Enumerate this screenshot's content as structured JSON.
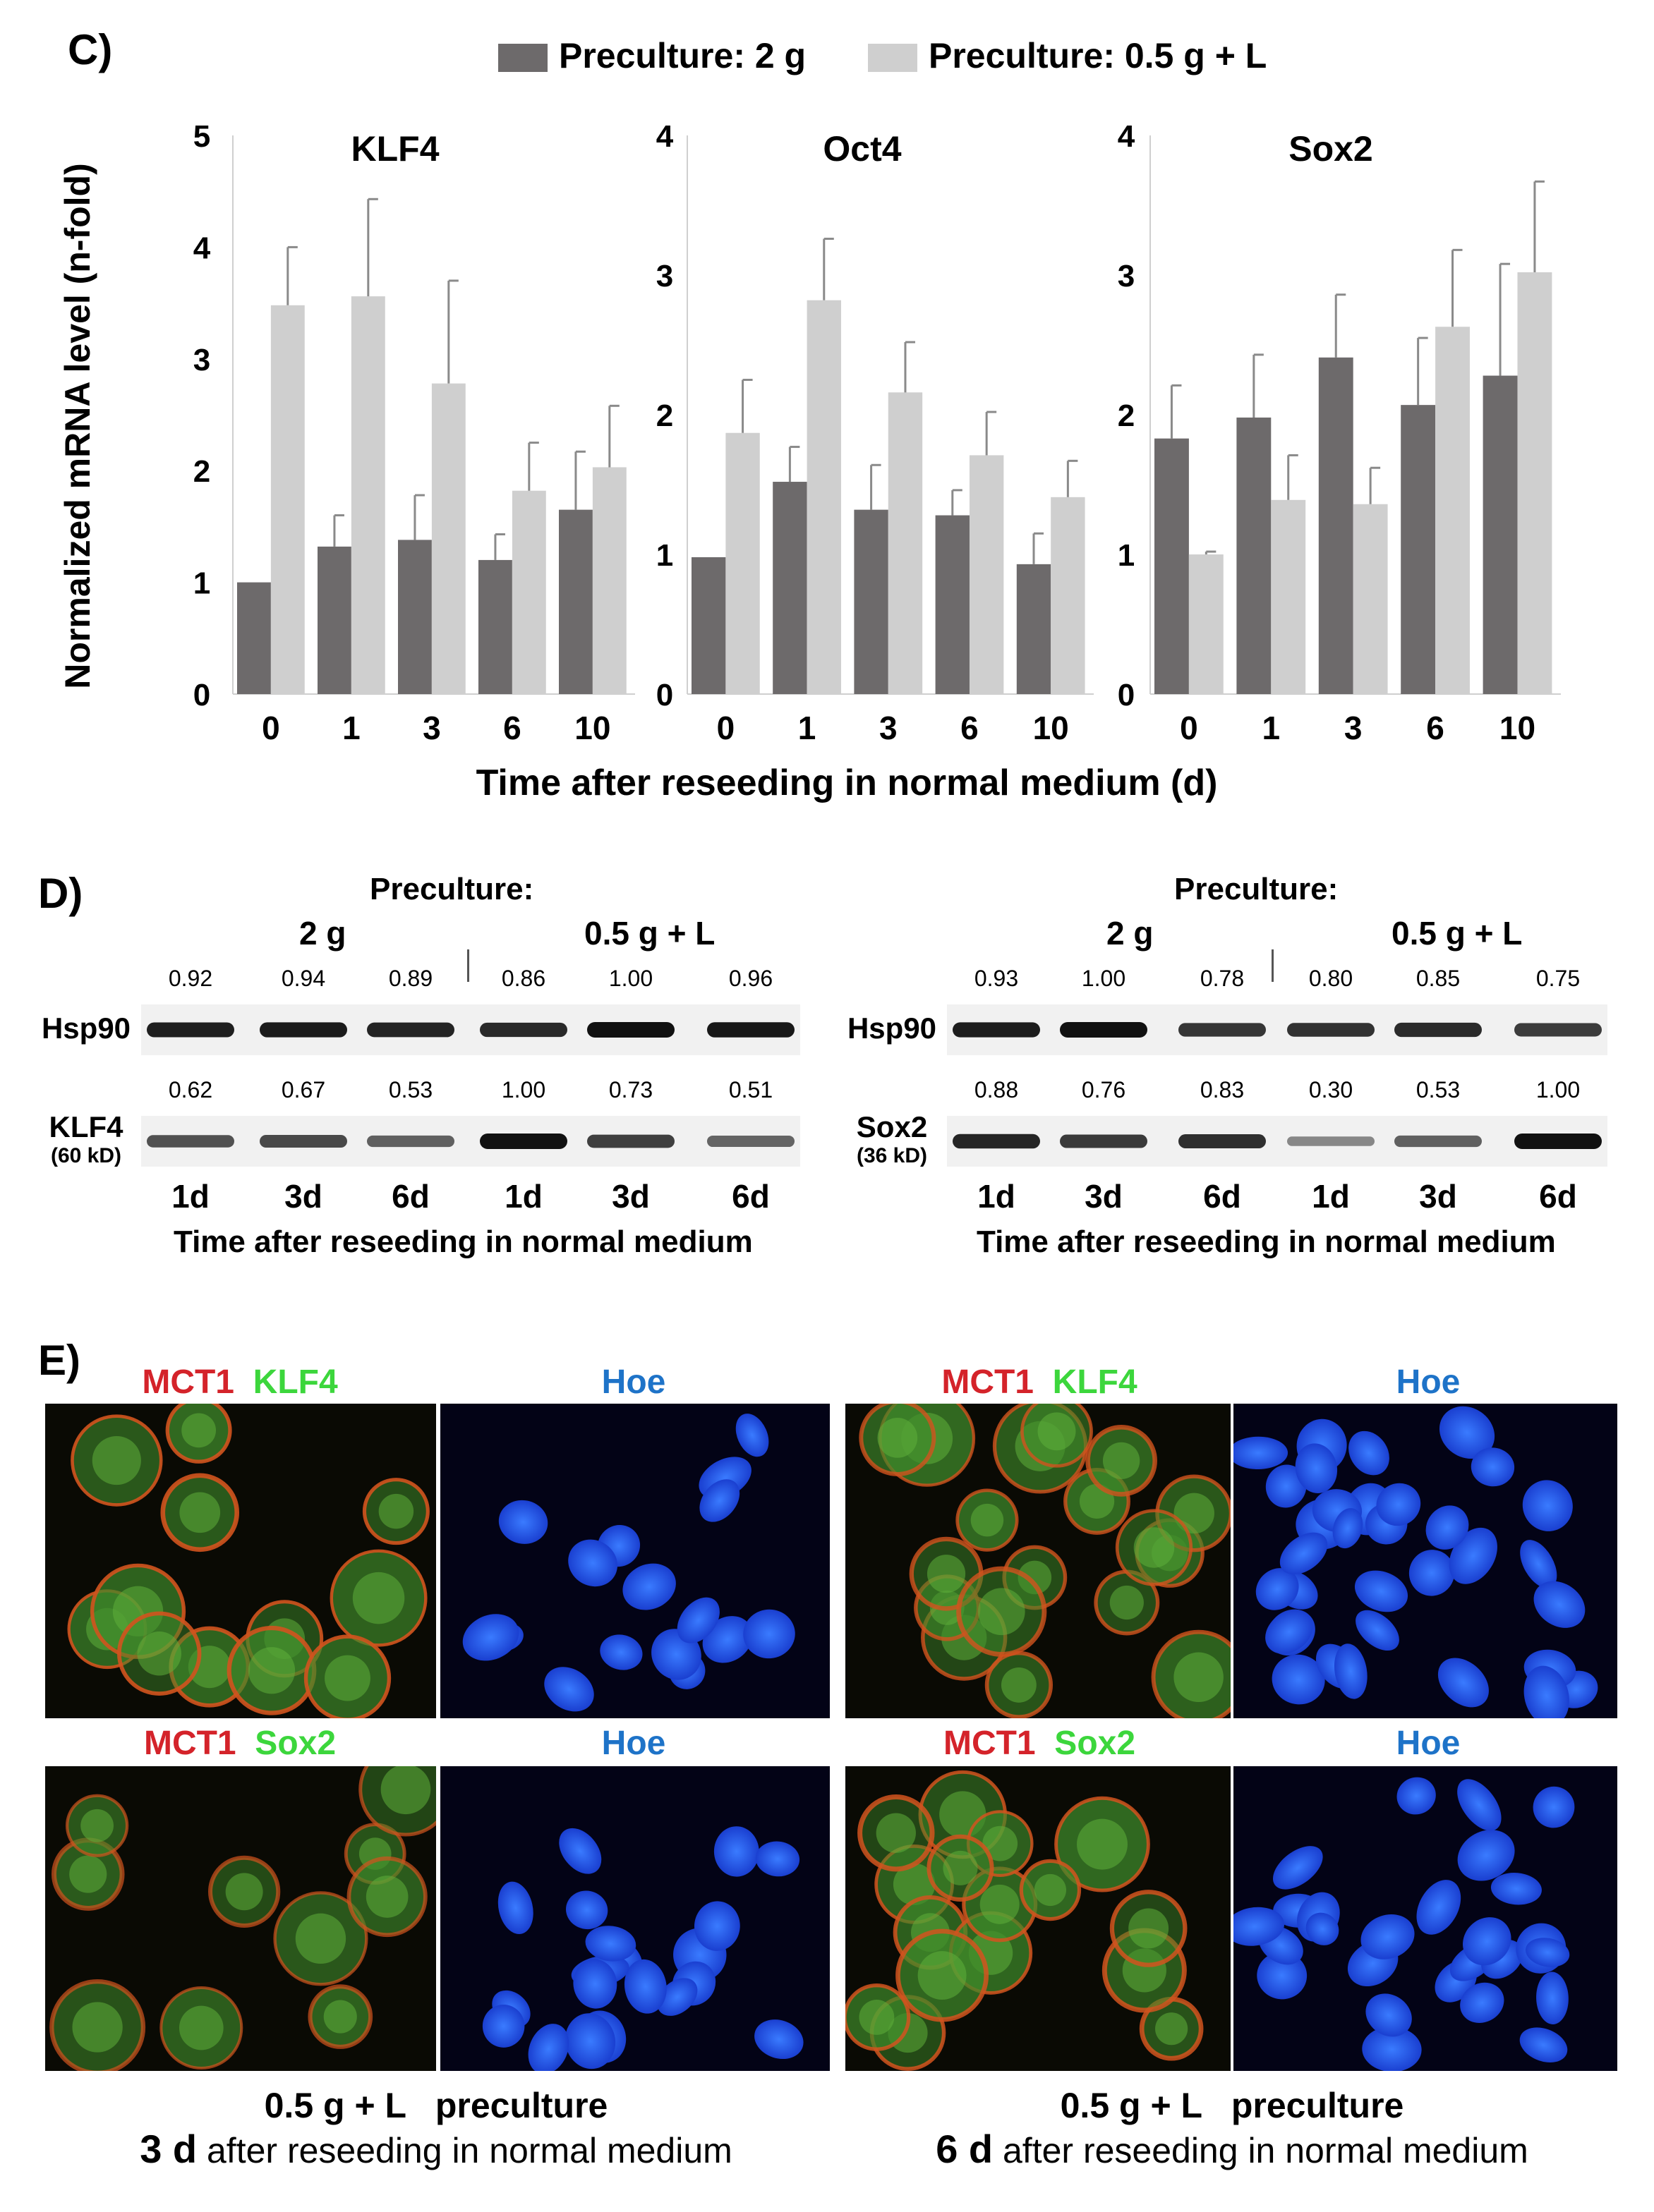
{
  "panel_c": {
    "label": "C)",
    "legend": [
      {
        "name": "Preculture: 2 g",
        "color": "#6d6a6b"
      },
      {
        "name": "Preculture: 0.5 g + L",
        "color": "#cfcfcf"
      }
    ],
    "y_label": "Normalized mRNA level (n-fold)",
    "x_label": "Time after reseeding in normal medium (d)"
  },
  "chart_data": [
    {
      "type": "bar",
      "title": "KLF4",
      "categories": [
        "0",
        "1",
        "3",
        "6",
        "10"
      ],
      "ylim": [
        0,
        5
      ],
      "yticks": [
        "0",
        "1",
        "2",
        "3",
        "4",
        "5"
      ],
      "series": [
        {
          "name": "Preculture: 2 g",
          "values": [
            1.0,
            1.32,
            1.38,
            1.2,
            1.65
          ],
          "errors": [
            0,
            0.28,
            0.4,
            0.23,
            0.52
          ]
        },
        {
          "name": "Preculture: 0.5 g + L",
          "values": [
            3.48,
            3.56,
            2.78,
            1.82,
            2.03
          ],
          "errors": [
            0.52,
            0.87,
            0.92,
            0.43,
            0.55
          ]
        }
      ]
    },
    {
      "type": "bar",
      "title": "Oct4",
      "categories": [
        "0",
        "1",
        "3",
        "6",
        "10"
      ],
      "ylim": [
        0,
        4
      ],
      "yticks": [
        "0",
        "1",
        "2",
        "3",
        "4"
      ],
      "series": [
        {
          "name": "Preculture: 2 g",
          "values": [
            0.98,
            1.52,
            1.32,
            1.28,
            0.93
          ],
          "errors": [
            0,
            0.25,
            0.32,
            0.18,
            0.22
          ]
        },
        {
          "name": "Preculture: 0.5 g + L",
          "values": [
            1.87,
            2.82,
            2.16,
            1.71,
            1.41
          ],
          "errors": [
            0.38,
            0.44,
            0.36,
            0.31,
            0.26
          ]
        }
      ]
    },
    {
      "type": "bar",
      "title": "Sox2",
      "categories": [
        "0",
        "1",
        "3",
        "6",
        "10"
      ],
      "ylim": [
        0,
        4
      ],
      "yticks": [
        "0",
        "1",
        "2",
        "3",
        "4"
      ],
      "series": [
        {
          "name": "Preculture: 2 g",
          "values": [
            1.83,
            1.98,
            2.41,
            2.07,
            2.28
          ],
          "errors": [
            0.38,
            0.45,
            0.45,
            0.48,
            0.8
          ]
        },
        {
          "name": "Preculture: 0.5 g + L",
          "values": [
            1.0,
            1.39,
            1.36,
            2.63,
            3.02
          ],
          "errors": [
            0.02,
            0.32,
            0.26,
            0.55,
            0.65
          ]
        }
      ]
    }
  ],
  "panel_d": {
    "label": "D)",
    "blots": [
      {
        "preculture_label": "Preculture:",
        "group_left": "2 g",
        "group_right": "0.5 g + L",
        "rows": [
          {
            "name": "Hsp90",
            "sub": "",
            "values": [
              "0.92",
              "0.94",
              "0.89",
              "0.86",
              "1.00",
              "0.96"
            ],
            "intensity": [
              0.92,
              0.94,
              0.89,
              0.86,
              1.0,
              0.96
            ]
          },
          {
            "name": "KLF4",
            "sub": "(60 kD)",
            "values": [
              "0.62",
              "0.67",
              "0.53",
              "1.00",
              "0.73",
              "0.51"
            ],
            "intensity": [
              0.62,
              0.67,
              0.53,
              1.0,
              0.73,
              0.51
            ]
          }
        ],
        "lanes": [
          "1d",
          "3d",
          "6d",
          "1d",
          "3d",
          "6d"
        ],
        "time_caption": "Time after reseeding in normal medium"
      },
      {
        "preculture_label": "Preculture:",
        "group_left": "2 g",
        "group_right": "0.5 g + L",
        "rows": [
          {
            "name": "Hsp90",
            "sub": "",
            "values": [
              "0.93",
              "1.00",
              "0.78",
              "0.80",
              "0.85",
              "0.75"
            ],
            "intensity": [
              0.93,
              1.0,
              0.78,
              0.8,
              0.85,
              0.75
            ]
          },
          {
            "name": "Sox2",
            "sub": "(36 kD)",
            "values": [
              "0.88",
              "0.76",
              "0.83",
              "0.30",
              "0.53",
              "1.00"
            ],
            "intensity": [
              0.88,
              0.76,
              0.83,
              0.3,
              0.53,
              1.0
            ]
          }
        ],
        "lanes": [
          "1d",
          "3d",
          "6d",
          "1d",
          "3d",
          "6d"
        ],
        "time_caption": "Time after reseeding in normal medium"
      }
    ]
  },
  "panel_e": {
    "label": "E)",
    "colors": {
      "red": "#d4232a",
      "green": "#3cd63c",
      "blue": "#1e73c8"
    },
    "titles": {
      "mct1": "MCT1",
      "klf4": "KLF4",
      "sox2": "Sox2",
      "hoe": "Hoe"
    },
    "captions": [
      {
        "line1": "0.5 g + L   preculture",
        "day": "3 d",
        "line2": " after reseeding in normal medium"
      },
      {
        "line1": "0.5 g + L   preculture",
        "day": "6 d",
        "line2": " after reseeding in normal medium"
      }
    ]
  }
}
